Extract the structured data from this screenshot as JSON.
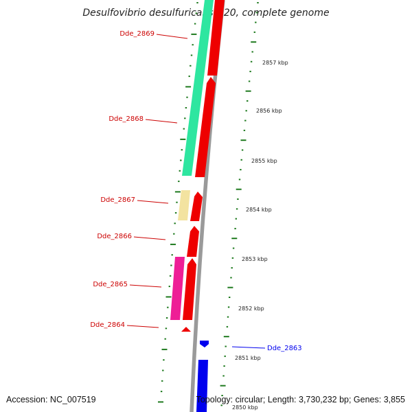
{
  "header": {
    "title": "Desulfovibrio desulfuricans G20, complete genome"
  },
  "footer": {
    "accession": "Accession: NC_007519",
    "summary": "Topology: circular; Length: 3,730,232 bp; Genes: 3,855"
  },
  "colors": {
    "backbone": "#9a9a9a",
    "tick": "#1e7a1e",
    "forward": "#ee0000",
    "reverse_label": "#cc0000",
    "blue_feature": "#0000ee",
    "teal_feature": "#2ee6a0",
    "yellow_feature": "#f3e3a0",
    "pink_feature": "#ee1e96"
  },
  "scale": {
    "unit": "kbp",
    "ticks": [
      {
        "kbp": 2857,
        "label": "2857 kbp"
      },
      {
        "kbp": 2856,
        "label": "2856 kbp"
      },
      {
        "kbp": 2855,
        "label": "2855 kbp"
      },
      {
        "kbp": 2854,
        "label": "2854 kbp"
      },
      {
        "kbp": 2853,
        "label": "2853 kbp"
      },
      {
        "kbp": 2852,
        "label": "2852 kbp"
      },
      {
        "kbp": 2851,
        "label": "2851 kbp"
      },
      {
        "kbp": 2850,
        "label": "2850 kbp"
      }
    ]
  },
  "genes": [
    {
      "name": "Dde_2869",
      "label": "Dde_2869",
      "strand": "reverse"
    },
    {
      "name": "Dde_2868",
      "label": "Dde_2868",
      "strand": "reverse"
    },
    {
      "name": "Dde_2867",
      "label": "Dde_2867",
      "strand": "reverse"
    },
    {
      "name": "Dde_2866",
      "label": "Dde_2866",
      "strand": "reverse"
    },
    {
      "name": "Dde_2865",
      "label": "Dde_2865",
      "strand": "reverse"
    },
    {
      "name": "Dde_2864",
      "label": "Dde_2864",
      "strand": "reverse"
    },
    {
      "name": "Dde_2863",
      "label": "Dde_2863",
      "strand": "forward"
    }
  ]
}
